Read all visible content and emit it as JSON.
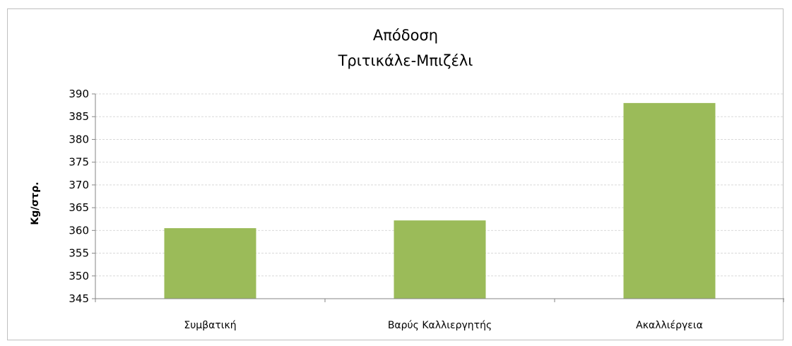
{
  "chart_data": {
    "type": "bar",
    "title": [
      "Απόδοση",
      "Τριτικάλε-Μπιζέλι"
    ],
    "xlabel": "",
    "ylabel": "Kg/στρ.",
    "categories": [
      "Συμβατική",
      "Βαρύς Καλλιεργητής",
      "Ακαλλιέργεια"
    ],
    "values": [
      360.5,
      362.2,
      388.0
    ],
    "ylim": [
      345,
      390
    ],
    "yticks": [
      "345",
      "350",
      "355",
      "360",
      "365",
      "370",
      "375",
      "380",
      "385",
      "390"
    ],
    "grid": true,
    "legend": "none",
    "colors": {
      "bar": "#9bbb59",
      "grid": "#d9d9d9",
      "axis": "#868686",
      "frame": "#bfbfbf"
    }
  }
}
